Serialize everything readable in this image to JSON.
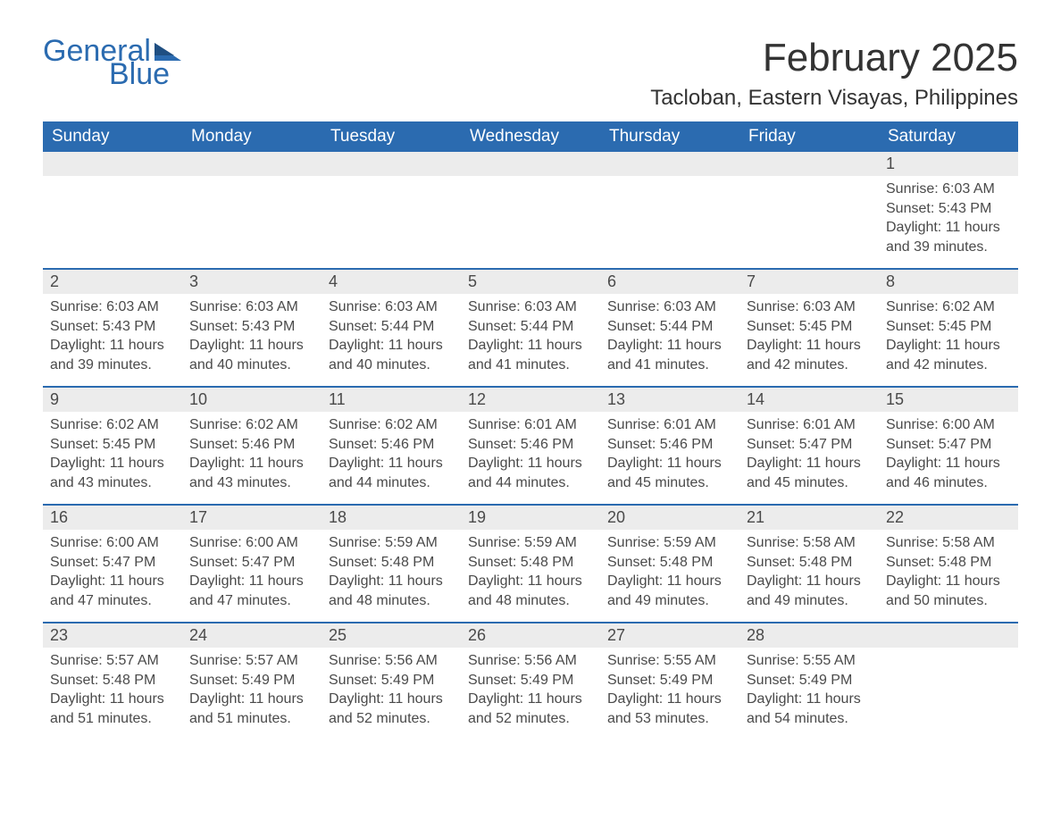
{
  "logo": {
    "text_general": "General",
    "text_blue": "Blue",
    "flag_color": "#2b6bb0"
  },
  "title": "February 2025",
  "location": "Tacloban, Eastern Visayas, Philippines",
  "colors": {
    "header_bg": "#2b6bb0",
    "header_text": "#ffffff",
    "daynum_bg": "#ececec",
    "text": "#4a4a4a",
    "page_bg": "#ffffff",
    "week_border": "#2b6bb0"
  },
  "day_headers": [
    "Sunday",
    "Monday",
    "Tuesday",
    "Wednesday",
    "Thursday",
    "Friday",
    "Saturday"
  ],
  "weeks": [
    [
      {
        "num": "",
        "sunrise": "",
        "sunset": "",
        "daylight": ""
      },
      {
        "num": "",
        "sunrise": "",
        "sunset": "",
        "daylight": ""
      },
      {
        "num": "",
        "sunrise": "",
        "sunset": "",
        "daylight": ""
      },
      {
        "num": "",
        "sunrise": "",
        "sunset": "",
        "daylight": ""
      },
      {
        "num": "",
        "sunrise": "",
        "sunset": "",
        "daylight": ""
      },
      {
        "num": "",
        "sunrise": "",
        "sunset": "",
        "daylight": ""
      },
      {
        "num": "1",
        "sunrise": "Sunrise: 6:03 AM",
        "sunset": "Sunset: 5:43 PM",
        "daylight": "Daylight: 11 hours and 39 minutes."
      }
    ],
    [
      {
        "num": "2",
        "sunrise": "Sunrise: 6:03 AM",
        "sunset": "Sunset: 5:43 PM",
        "daylight": "Daylight: 11 hours and 39 minutes."
      },
      {
        "num": "3",
        "sunrise": "Sunrise: 6:03 AM",
        "sunset": "Sunset: 5:43 PM",
        "daylight": "Daylight: 11 hours and 40 minutes."
      },
      {
        "num": "4",
        "sunrise": "Sunrise: 6:03 AM",
        "sunset": "Sunset: 5:44 PM",
        "daylight": "Daylight: 11 hours and 40 minutes."
      },
      {
        "num": "5",
        "sunrise": "Sunrise: 6:03 AM",
        "sunset": "Sunset: 5:44 PM",
        "daylight": "Daylight: 11 hours and 41 minutes."
      },
      {
        "num": "6",
        "sunrise": "Sunrise: 6:03 AM",
        "sunset": "Sunset: 5:44 PM",
        "daylight": "Daylight: 11 hours and 41 minutes."
      },
      {
        "num": "7",
        "sunrise": "Sunrise: 6:03 AM",
        "sunset": "Sunset: 5:45 PM",
        "daylight": "Daylight: 11 hours and 42 minutes."
      },
      {
        "num": "8",
        "sunrise": "Sunrise: 6:02 AM",
        "sunset": "Sunset: 5:45 PM",
        "daylight": "Daylight: 11 hours and 42 minutes."
      }
    ],
    [
      {
        "num": "9",
        "sunrise": "Sunrise: 6:02 AM",
        "sunset": "Sunset: 5:45 PM",
        "daylight": "Daylight: 11 hours and 43 minutes."
      },
      {
        "num": "10",
        "sunrise": "Sunrise: 6:02 AM",
        "sunset": "Sunset: 5:46 PM",
        "daylight": "Daylight: 11 hours and 43 minutes."
      },
      {
        "num": "11",
        "sunrise": "Sunrise: 6:02 AM",
        "sunset": "Sunset: 5:46 PM",
        "daylight": "Daylight: 11 hours and 44 minutes."
      },
      {
        "num": "12",
        "sunrise": "Sunrise: 6:01 AM",
        "sunset": "Sunset: 5:46 PM",
        "daylight": "Daylight: 11 hours and 44 minutes."
      },
      {
        "num": "13",
        "sunrise": "Sunrise: 6:01 AM",
        "sunset": "Sunset: 5:46 PM",
        "daylight": "Daylight: 11 hours and 45 minutes."
      },
      {
        "num": "14",
        "sunrise": "Sunrise: 6:01 AM",
        "sunset": "Sunset: 5:47 PM",
        "daylight": "Daylight: 11 hours and 45 minutes."
      },
      {
        "num": "15",
        "sunrise": "Sunrise: 6:00 AM",
        "sunset": "Sunset: 5:47 PM",
        "daylight": "Daylight: 11 hours and 46 minutes."
      }
    ],
    [
      {
        "num": "16",
        "sunrise": "Sunrise: 6:00 AM",
        "sunset": "Sunset: 5:47 PM",
        "daylight": "Daylight: 11 hours and 47 minutes."
      },
      {
        "num": "17",
        "sunrise": "Sunrise: 6:00 AM",
        "sunset": "Sunset: 5:47 PM",
        "daylight": "Daylight: 11 hours and 47 minutes."
      },
      {
        "num": "18",
        "sunrise": "Sunrise: 5:59 AM",
        "sunset": "Sunset: 5:48 PM",
        "daylight": "Daylight: 11 hours and 48 minutes."
      },
      {
        "num": "19",
        "sunrise": "Sunrise: 5:59 AM",
        "sunset": "Sunset: 5:48 PM",
        "daylight": "Daylight: 11 hours and 48 minutes."
      },
      {
        "num": "20",
        "sunrise": "Sunrise: 5:59 AM",
        "sunset": "Sunset: 5:48 PM",
        "daylight": "Daylight: 11 hours and 49 minutes."
      },
      {
        "num": "21",
        "sunrise": "Sunrise: 5:58 AM",
        "sunset": "Sunset: 5:48 PM",
        "daylight": "Daylight: 11 hours and 49 minutes."
      },
      {
        "num": "22",
        "sunrise": "Sunrise: 5:58 AM",
        "sunset": "Sunset: 5:48 PM",
        "daylight": "Daylight: 11 hours and 50 minutes."
      }
    ],
    [
      {
        "num": "23",
        "sunrise": "Sunrise: 5:57 AM",
        "sunset": "Sunset: 5:48 PM",
        "daylight": "Daylight: 11 hours and 51 minutes."
      },
      {
        "num": "24",
        "sunrise": "Sunrise: 5:57 AM",
        "sunset": "Sunset: 5:49 PM",
        "daylight": "Daylight: 11 hours and 51 minutes."
      },
      {
        "num": "25",
        "sunrise": "Sunrise: 5:56 AM",
        "sunset": "Sunset: 5:49 PM",
        "daylight": "Daylight: 11 hours and 52 minutes."
      },
      {
        "num": "26",
        "sunrise": "Sunrise: 5:56 AM",
        "sunset": "Sunset: 5:49 PM",
        "daylight": "Daylight: 11 hours and 52 minutes."
      },
      {
        "num": "27",
        "sunrise": "Sunrise: 5:55 AM",
        "sunset": "Sunset: 5:49 PM",
        "daylight": "Daylight: 11 hours and 53 minutes."
      },
      {
        "num": "28",
        "sunrise": "Sunrise: 5:55 AM",
        "sunset": "Sunset: 5:49 PM",
        "daylight": "Daylight: 11 hours and 54 minutes."
      },
      {
        "num": "",
        "sunrise": "",
        "sunset": "",
        "daylight": ""
      }
    ]
  ]
}
